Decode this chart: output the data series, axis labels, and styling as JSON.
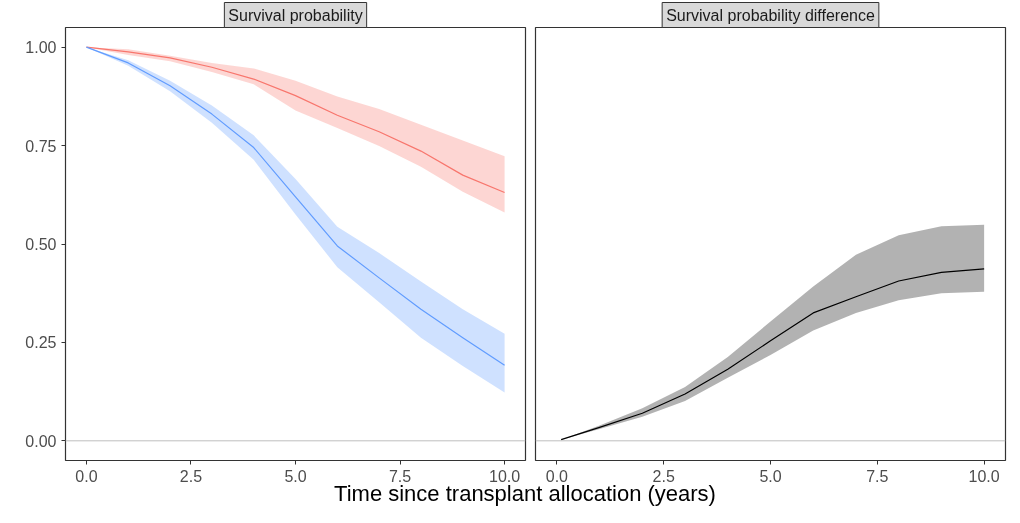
{
  "chart_data": [
    {
      "type": "line",
      "title": "Survival probability",
      "xlabel": "Time since transplant allocation (years)",
      "xlim": [
        -0.5,
        10.5
      ],
      "ylim": [
        -0.05,
        1.05
      ],
      "xticks": [
        {
          "value": 0,
          "label": "0.0"
        },
        {
          "value": 2.5,
          "label": "2.5"
        },
        {
          "value": 5,
          "label": "5.0"
        },
        {
          "value": 7.5,
          "label": "7.5"
        },
        {
          "value": 10,
          "label": "10.0"
        }
      ],
      "yticks": [
        {
          "value": 0,
          "label": "0.00"
        },
        {
          "value": 0.25,
          "label": "0.25"
        },
        {
          "value": 0.5,
          "label": "0.50"
        },
        {
          "value": 0.75,
          "label": "0.75"
        },
        {
          "value": 1,
          "label": "1.00"
        }
      ],
      "grid": false,
      "ref_lines": [
        {
          "axis": "y",
          "value": 0,
          "color": "#bebebe"
        }
      ],
      "x": [
        0,
        1,
        2,
        3,
        4,
        5,
        6,
        7,
        8,
        9,
        10
      ],
      "series": [
        {
          "color": "#f8766d",
          "values": [
            1.0,
            0.988,
            0.973,
            0.949,
            0.919,
            0.877,
            0.827,
            0.785,
            0.736,
            0.675,
            0.631
          ],
          "lower": [
            1.0,
            0.98,
            0.964,
            0.937,
            0.906,
            0.839,
            0.795,
            0.749,
            0.696,
            0.633,
            0.58
          ],
          "upper": [
            1.0,
            0.995,
            0.978,
            0.96,
            0.946,
            0.915,
            0.875,
            0.843,
            0.803,
            0.763,
            0.723
          ]
        },
        {
          "color": "#619cff",
          "values": [
            1.0,
            0.96,
            0.902,
            0.83,
            0.745,
            0.62,
            0.495,
            0.414,
            0.334,
            0.262,
            0.192
          ],
          "lower": [
            1.0,
            0.953,
            0.888,
            0.808,
            0.714,
            0.575,
            0.441,
            0.352,
            0.262,
            0.19,
            0.123
          ],
          "upper": [
            1.0,
            0.967,
            0.915,
            0.852,
            0.776,
            0.665,
            0.544,
            0.477,
            0.405,
            0.334,
            0.272
          ]
        }
      ]
    },
    {
      "type": "line",
      "title": "Survival probability difference",
      "xlim": [
        -0.5,
        10.5
      ],
      "ylim": [
        -0.05,
        1.05
      ],
      "xticks": [
        {
          "value": 0,
          "label": "0.0"
        },
        {
          "value": 2.5,
          "label": "2.5"
        },
        {
          "value": 5,
          "label": "5.0"
        },
        {
          "value": 7.5,
          "label": "7.5"
        },
        {
          "value": 10,
          "label": "10.0"
        }
      ],
      "tick_labels": "x",
      "grid": false,
      "ref_lines": [
        {
          "axis": "y",
          "value": 0,
          "color": "#bebebe"
        }
      ],
      "x": [
        0.1,
        1,
        2,
        3,
        4,
        5,
        6,
        7,
        8,
        9,
        10
      ],
      "series": [
        {
          "color": "#000000",
          "values": [
            0.003,
            0.034,
            0.07,
            0.119,
            0.182,
            0.254,
            0.325,
            0.366,
            0.406,
            0.428,
            0.437
          ],
          "lower": [
            0.003,
            0.03,
            0.061,
            0.101,
            0.16,
            0.218,
            0.28,
            0.325,
            0.357,
            0.375,
            0.379
          ],
          "upper": [
            0.003,
            0.039,
            0.083,
            0.137,
            0.213,
            0.303,
            0.392,
            0.473,
            0.522,
            0.545,
            0.549
          ]
        }
      ]
    }
  ]
}
